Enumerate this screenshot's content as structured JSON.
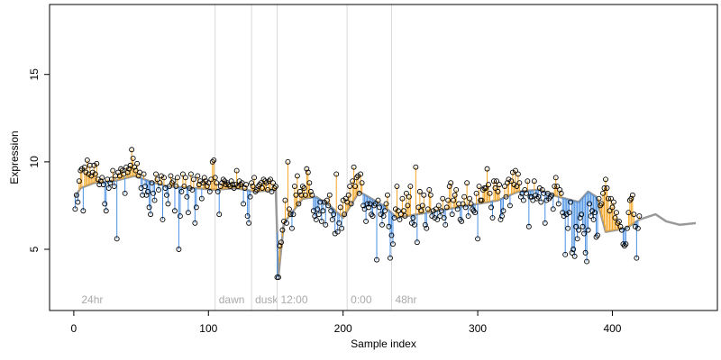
{
  "chart_data": {
    "type": "scatter",
    "title": "",
    "xlabel": "Sample index",
    "ylabel": "Expression",
    "xlim": [
      -18,
      478
    ],
    "ylim": [
      1.5,
      19
    ],
    "xticks": [
      0,
      100,
      200,
      300,
      400
    ],
    "yticks": [
      5,
      10,
      15
    ],
    "grid": false,
    "legend": "none",
    "phase_lines": [
      {
        "x": 3,
        "label": "24hr",
        "line": false
      },
      {
        "x": 105,
        "label": "dawn",
        "line": true
      },
      {
        "x": 132,
        "label": "dusk",
        "line": true
      },
      {
        "x": 151,
        "label": "12:00",
        "line": true
      },
      {
        "x": 203,
        "label": "0:00",
        "line": true
      },
      {
        "x": 236,
        "label": "48hr",
        "line": true
      }
    ],
    "series": [
      {
        "role": "points",
        "x_start": 1,
        "values": [
          7.3,
          8.1,
          7.7,
          8.9,
          9.5,
          9.6,
          7.2,
          9.7,
          9.4,
          10.1,
          9.3,
          9.8,
          9.2,
          9.4,
          9.8,
          9.3,
          9.9,
          9.0,
          8.7,
          8.9,
          9.1,
          8.7,
          7.6,
          7.2,
          9.0,
          8.5,
          8.8,
          9.0,
          9.5,
          8.6,
          9.2,
          5.6,
          9.4,
          9.2,
          9.6,
          9.5,
          9.3,
          8.2,
          9.7,
          9.4,
          9.6,
          9.8,
          10.7,
          10.2,
          9.7,
          9.5,
          9.9,
          9.2,
          9.4,
          8.5,
          8.1,
          9.3,
          8.6,
          8.1,
          8.3,
          7.4,
          7.0,
          8.8,
          8.2,
          7.8,
          9.3,
          9.0,
          8.4,
          8.8,
          9.2,
          6.7,
          9.1,
          8.5,
          8.1,
          7.6,
          8.6,
          9.2,
          8.8,
          8.9,
          7.2,
          8.6,
          9.1,
          5.0,
          6.9,
          8.3,
          9.3,
          8.6,
          9.1,
          8.0,
          7.1,
          8.5,
          9.3,
          8.4,
          9.0,
          6.5,
          7.4,
          9.2,
          8.7,
          8.9,
          7.9,
          8.8,
          9.1,
          8.9,
          8.6,
          8.8,
          8.3,
          9.0,
          10.0,
          10.1,
          9.1,
          8.8,
          8.3,
          7.0,
          8.6,
          8.8,
          9.0,
          8.9,
          8.7,
          8.8,
          8.7,
          8.6,
          8.9,
          8.7,
          8.5,
          8.7,
          9.5,
          8.6,
          8.9,
          8.7,
          8.8,
          7.6,
          8.5,
          8.7,
          6.9,
          6.5,
          8.0,
          8.8,
          8.6,
          9.1,
          8.3,
          8.4,
          8.6,
          8.7,
          8.8,
          8.5,
          9.0,
          8.9,
          8.8,
          8.4,
          8.9,
          9.0,
          8.3,
          8.8,
          8.5,
          8.6,
          3.4,
          3.4,
          5.2,
          5.4,
          6.1,
          6.6,
          7.8,
          6.5,
          10.0,
          7.3,
          7.0,
          6.2,
          7.0,
          8.6,
          8.1,
          9.2,
          7.6,
          8.3,
          8.1,
          8.6,
          8.5,
          8.1,
          9.6,
          9.4,
          8.8,
          8.3,
          8.1,
          7.2,
          6.9,
          6.7,
          7.3,
          7.0,
          7.7,
          6.6,
          7.2,
          7.7,
          6.4,
          7.8,
          7.5,
          8.1,
          7.2,
          6.7,
          7.0,
          5.9,
          9.3,
          6.0,
          6.5,
          7.4,
          6.2,
          7.8,
          7.0,
          7.9,
          7.7,
          8.1,
          8.6,
          7.6,
          8.9,
          9.7,
          8.6,
          9.1,
          9.2,
          8.2,
          9.3,
          8.8,
          7.5,
          7.3,
          6.6,
          7.6,
          7.4,
          7.6,
          7.0,
          6.9,
          7.5,
          7.6,
          4.4,
          7.8,
          7.4,
          7.0,
          6.4,
          6.9,
          7.2,
          7.6,
          8.1,
          6.3,
          4.5,
          5.8,
          5.3,
          6.8,
          7.3,
          8.6,
          7.2,
          6.7,
          7.0,
          7.9,
          7.2,
          6.9,
          8.2,
          7.5,
          8.0,
          8.6,
          6.5,
          6.8,
          6.4,
          9.7,
          5.4,
          7.4,
          8.3,
          7.2,
          7.5,
          8.1,
          6.4,
          6.2,
          7.3,
          8.4,
          8.1,
          6.9,
          7.2,
          6.8,
          7.3,
          6.7,
          7.5,
          6.9,
          7.2,
          7.9,
          6.8,
          6.4,
          7.4,
          7.8,
          8.6,
          8.8,
          7.0,
          7.8,
          8.1,
          8.4,
          7.3,
          7.6,
          6.7,
          6.6,
          7.6,
          8.0,
          7.4,
          8.8,
          6.9,
          7.9,
          7.6,
          7.3,
          7.2,
          7.1,
          8.2,
          5.6,
          8.6,
          7.8,
          7.8,
          8.4,
          8.5,
          8.5,
          9.6,
          8.7,
          8.2,
          7.4,
          6.8,
          8.9,
          8.5,
          8.9,
          8.3,
          8.7,
          6.7,
          6.9,
          7.2,
          8.6,
          8.0,
          8.8,
          9.0,
          7.5,
          8.9,
          9.4,
          8.7,
          9.5,
          8.6,
          9.3,
          8.8,
          8.0,
          8.2,
          7.8,
          8.4,
          8.2,
          8.9,
          6.3,
          8.0,
          8.0,
          7.8,
          8.9,
          8.1,
          7.9,
          8.0,
          8.5,
          7.7,
          8.4,
          8.2,
          6.5,
          7.8,
          8.2,
          7.9,
          8.0,
          8.1,
          7.3,
          8.6,
          9.1,
          8.6,
          7.6,
          8.4,
          8.2,
          7.1,
          6.9,
          4.7,
          7.0,
          6.2,
          7.1,
          7.7,
          4.8,
          5.0,
          4.6,
          6.3,
          5.6,
          6.1,
          6.8,
          7.0,
          6.3,
          5.9,
          4.8,
          4.3,
          6.1,
          7.6,
          6.9,
          7.2,
          6.7,
          7.1,
          5.7,
          5.8,
          7.9,
          7.5,
          7.6,
          8.2,
          8.5,
          9.0,
          8.5,
          7.9,
          7.2,
          7.9,
          7.4,
          7.7,
          6.8,
          7.1,
          6.5,
          6.6,
          6.3,
          6.1,
          5.3,
          5.2,
          5.3,
          6.2,
          7.1,
          7.8,
          7.9,
          8.1,
          7.0,
          6.3,
          4.5,
          6.2,
          6.9
        ]
      },
      {
        "role": "smooth-trend",
        "x": [
          1,
          5,
          15,
          30,
          45,
          60,
          70,
          90,
          105,
          120,
          135,
          150,
          152,
          156,
          170,
          180,
          190,
          200,
          212,
          230,
          240,
          255,
          270,
          285,
          300,
          315,
          330,
          345,
          360,
          375,
          382,
          388,
          395,
          410,
          420,
          432,
          440,
          450,
          462
        ],
        "values": [
          8.0,
          8.5,
          8.8,
          8.9,
          9.2,
          8.8,
          8.6,
          8.5,
          8.4,
          8.5,
          8.3,
          8.4,
          3.5,
          6.5,
          7.9,
          8.0,
          7.5,
          6.8,
          8.3,
          7.5,
          6.8,
          7.0,
          7.2,
          7.4,
          7.6,
          7.8,
          8.3,
          8.4,
          8.0,
          7.7,
          8.3,
          8.0,
          6.0,
          6.2,
          6.7,
          7.0,
          6.6,
          6.4,
          6.5
        ]
      }
    ],
    "colors": {
      "above": "#f5a623",
      "below": "#4a90e2",
      "trend": "#999999",
      "phase_line": "#d9d9d9",
      "phase_text": "#aaaaaa",
      "point_stroke": "#000000"
    }
  }
}
